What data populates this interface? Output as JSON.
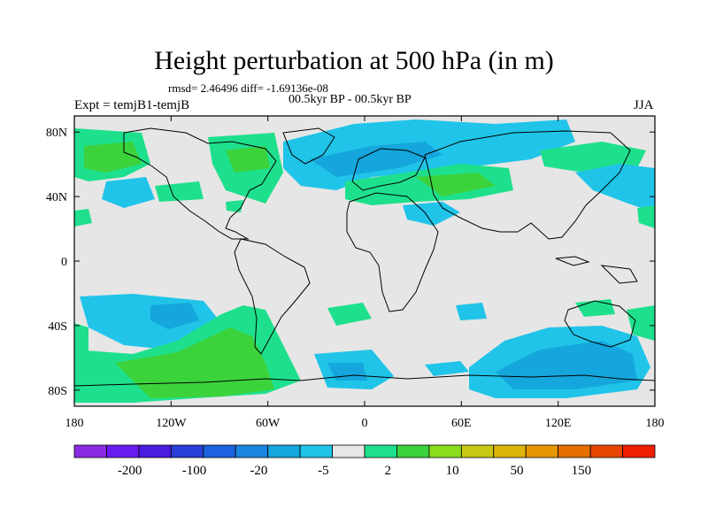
{
  "title": "Height perturbation at 500 hPa (in m)",
  "stats": "rmsd= 2.46496 diff= -1.69136e-08",
  "experiment": "Expt = temjB1-temjB",
  "period": "00.5kyr BP - 00.5kyr BP",
  "season": "JJA",
  "y_axis": {
    "range": [
      -90,
      90
    ],
    "ticks": [
      {
        "value": 80,
        "label": "80N"
      },
      {
        "value": 40,
        "label": "40N"
      },
      {
        "value": 0,
        "label": "0"
      },
      {
        "value": -40,
        "label": "40S"
      },
      {
        "value": -80,
        "label": "80S"
      }
    ]
  },
  "x_axis": {
    "range": [
      -180,
      180
    ],
    "ticks": [
      {
        "value": -180,
        "label": "180"
      },
      {
        "value": -120,
        "label": "120W"
      },
      {
        "value": -60,
        "label": "60W"
      },
      {
        "value": 0,
        "label": "0"
      },
      {
        "value": 60,
        "label": "60E"
      },
      {
        "value": 120,
        "label": "120E"
      },
      {
        "value": 180,
        "label": "180"
      }
    ]
  },
  "colorbar": {
    "colors": [
      "#8a2be2",
      "#6a1cf0",
      "#4b1be0",
      "#2a3ed8",
      "#1c62e0",
      "#1a86e0",
      "#14a6dc",
      "#20c4e8",
      "#e6e6e6",
      "#1ee08c",
      "#3cd23c",
      "#8cdc1e",
      "#c8c814",
      "#dcb40a",
      "#e69600",
      "#e66e00",
      "#e64600",
      "#f01e00"
    ],
    "labels": [
      "-200",
      "-100",
      "-20",
      "-5",
      "2",
      "10",
      "50",
      "150"
    ]
  },
  "map_colors": {
    "background": "#e6e6e6",
    "land_outline": "#000000"
  }
}
